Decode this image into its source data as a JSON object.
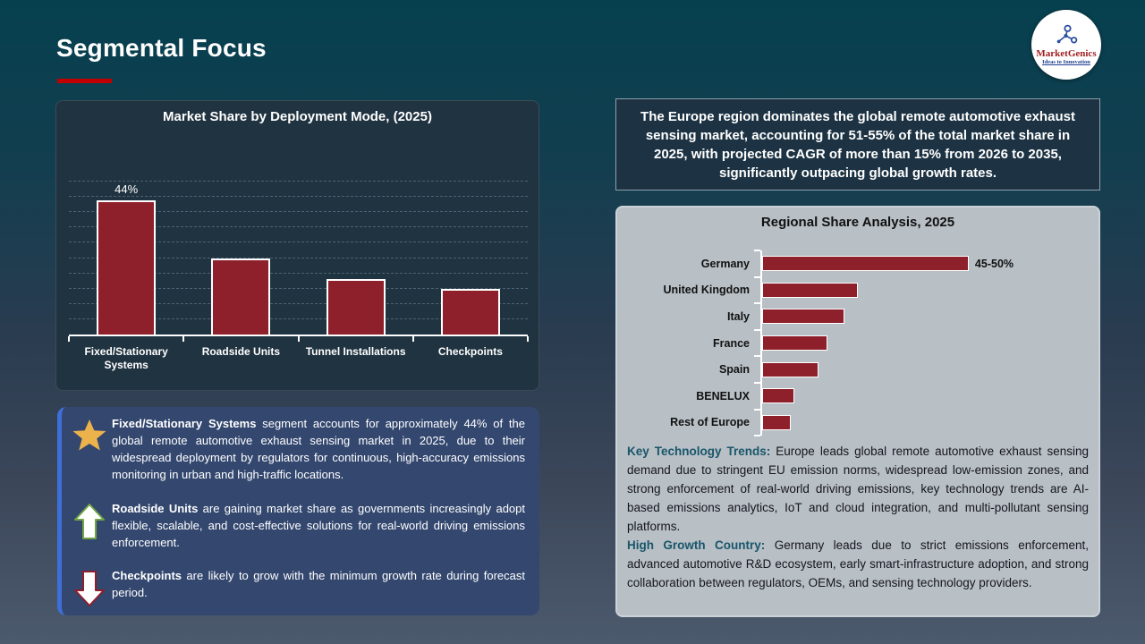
{
  "slide": {
    "title": "Segmental Focus",
    "logo": {
      "brand": "MarketGenics",
      "tagline": "Ideas to Innovation"
    }
  },
  "europe_callout": "The Europe region dominates the global remote automotive exhaust sensing market, accounting for 51-55% of the total market share in 2025, with projected CAGR of more than 15% from 2026 to 2035, significantly outpacing global growth rates.",
  "insight_box": {
    "items": [
      {
        "icon": "star-icon",
        "bold": "Fixed/Stationary Systems",
        "text": " segment accounts for approximately 44% of the global remote automotive exhaust sensing market in 2025, due to their widespread deployment by regulators for continuous, high-accuracy emissions monitoring in urban and high-traffic locations."
      },
      {
        "icon": "arrow-up-icon",
        "bold": "Roadside Units",
        "text": " are gaining market share as governments increasingly adopt flexible, scalable, and cost-effective solutions for real-world driving emissions enforcement."
      },
      {
        "icon": "arrow-down-icon",
        "bold": "Checkpoints",
        "text": " are likely to grow with the minimum growth rate during forecast period."
      }
    ]
  },
  "regional_notes": {
    "trend_label": "Key Technology Trends:",
    "trend_text": " Europe leads global remote automotive exhaust sensing demand due to stringent EU emission norms, widespread low-emission zones, and strong enforcement of real-world driving emissions, key technology trends are AI-based emissions analytics, IoT and cloud integration, and multi-pollutant sensing platforms.",
    "growth_label": "High Growth Country:",
    "growth_text": " Germany leads due to strict emissions enforcement, advanced automotive R&D ecosystem, early smart-infrastructure adoption, and strong collaboration between regulators, OEMs, and sensing technology providers."
  },
  "chart_data": [
    {
      "type": "bar",
      "title": "Market Share by Deployment Mode, (2025)",
      "categories": [
        "Fixed/Stationary Systems",
        "Roadside Units",
        "Tunnel Installations",
        "Checkpoints"
      ],
      "values": [
        44,
        25,
        18,
        15
      ],
      "data_labels": [
        "44%",
        "",
        "",
        ""
      ],
      "xlabel": "",
      "ylabel": "",
      "ylim": [
        0,
        50
      ],
      "grid": "dashed horizontal, every 5%",
      "legend": "none",
      "bar_color": "#8e202c"
    },
    {
      "type": "bar",
      "orientation": "horizontal",
      "title": "Regional Share Analysis, 2025",
      "categories": [
        "Germany",
        "United Kingdom",
        "Italy",
        "France",
        "Spain",
        "BENELUX",
        "Rest of Europe"
      ],
      "values": [
        47.5,
        22,
        19,
        15,
        13,
        7.5,
        6.5
      ],
      "data_labels": [
        "45-50%",
        "",
        "",
        "",
        "",
        "",
        ""
      ],
      "xlabel": "",
      "ylabel": "",
      "xlim": [
        0,
        65
      ],
      "grid": "off",
      "legend": "none",
      "bar_color": "#8e202c"
    }
  ],
  "colors": {
    "title_underline": "#c00000",
    "bar_fill": "#8e202c",
    "dark_panel_bg": "#203340",
    "callout_bg": "#1d3343",
    "insight_bg": "#33476f",
    "insight_accent": "#3e6fd9",
    "gray_panel_bg": "#b8bfc5",
    "teal_label": "#19566b",
    "star_gold": "#ecb24c",
    "arrow_green": "#6fa544",
    "arrow_red": "#8e1f2d"
  }
}
